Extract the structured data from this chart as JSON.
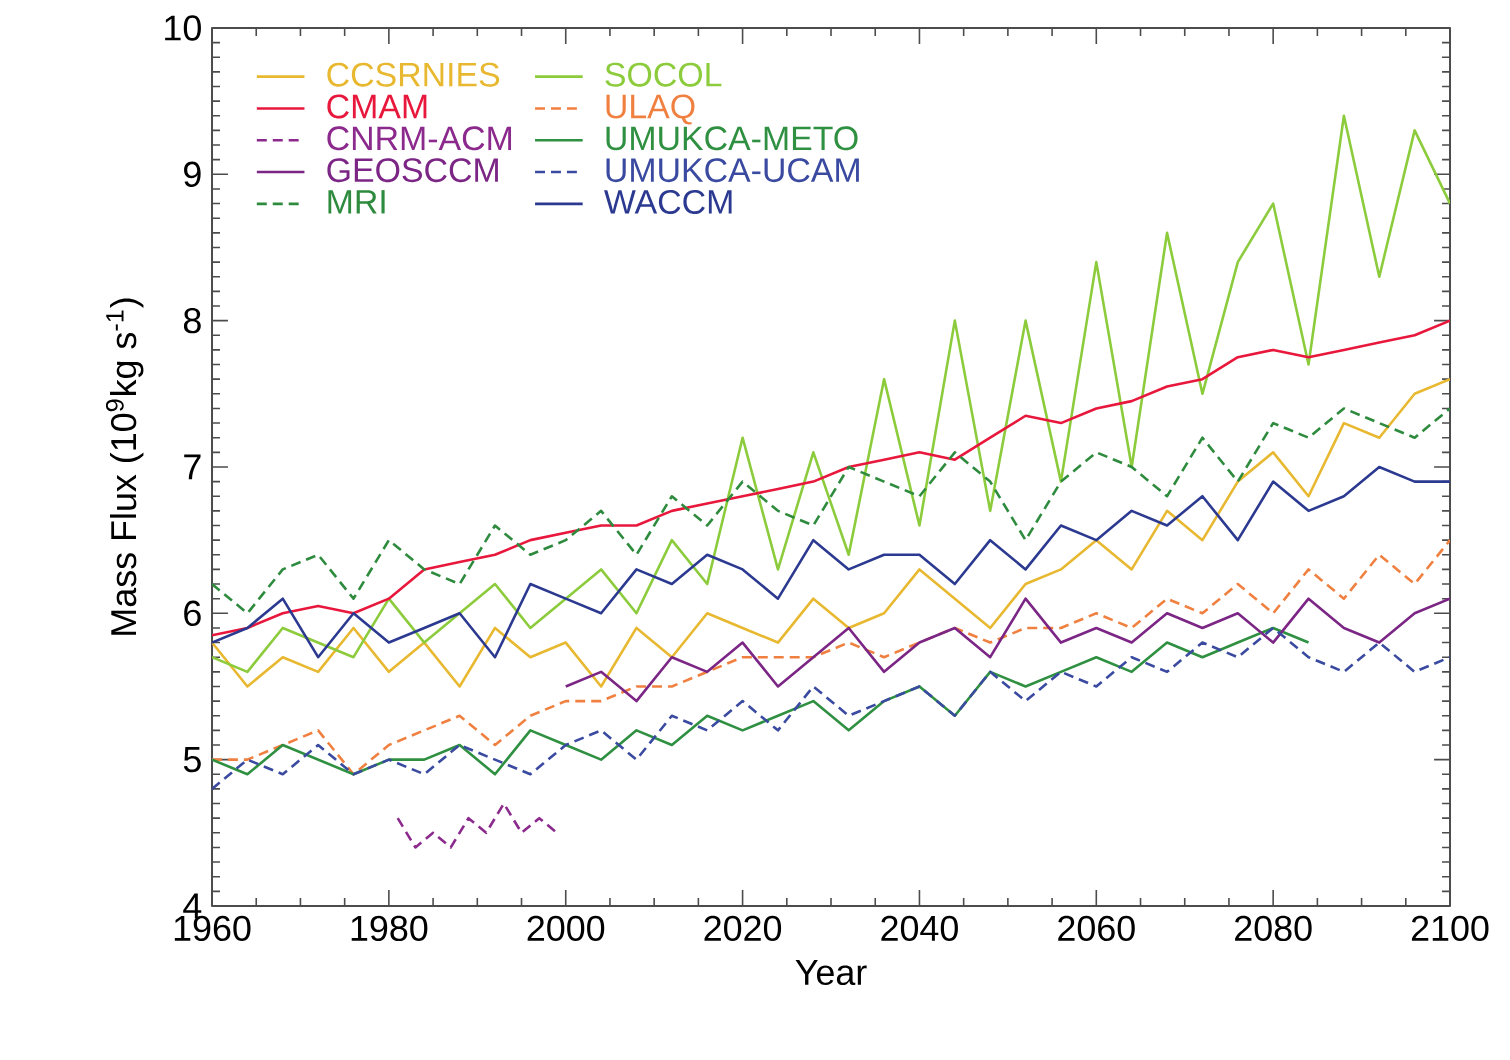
{
  "chart_data": {
    "type": "line",
    "xlabel": "Year",
    "ylabel": "Mass Flux (10$^{9}$kg s$^{-1}$)",
    "xlim": [
      1960,
      2100
    ],
    "xticks": [
      1960,
      1980,
      2000,
      2020,
      2040,
      2060,
      2080,
      2100
    ],
    "ylim": [
      4,
      10
    ],
    "yticks": [
      4,
      5,
      6,
      7,
      8,
      9,
      10
    ],
    "grid": false,
    "legend": "top left",
    "x": [
      1960,
      1964,
      1968,
      1972,
      1976,
      1980,
      1984,
      1988,
      1992,
      1996,
      2000,
      2004,
      2008,
      2012,
      2016,
      2020,
      2024,
      2028,
      2032,
      2036,
      2040,
      2044,
      2048,
      2052,
      2056,
      2060,
      2064,
      2068,
      2072,
      2076,
      2080,
      2084,
      2088,
      2092,
      2096,
      2100
    ],
    "series": [
      {
        "name": "CCSRNIES",
        "color": "#e8b830",
        "line_style": "solid",
        "values": [
          5.8,
          5.5,
          5.7,
          5.6,
          5.9,
          5.6,
          5.8,
          5.5,
          5.9,
          5.7,
          5.8,
          5.5,
          5.9,
          5.7,
          6.0,
          5.9,
          5.8,
          6.1,
          5.9,
          6.0,
          6.3,
          6.1,
          5.9,
          6.2,
          6.3,
          6.5,
          6.3,
          6.7,
          6.5,
          6.9,
          7.1,
          6.8,
          7.3,
          7.2,
          7.5,
          7.6
        ]
      },
      {
        "name": "CMAM",
        "color": "#e8173c",
        "line_style": "solid",
        "values": [
          5.85,
          5.9,
          6.0,
          6.05,
          6.0,
          6.1,
          6.3,
          6.35,
          6.4,
          6.5,
          6.55,
          6.6,
          6.6,
          6.7,
          6.75,
          6.8,
          6.85,
          6.9,
          7.0,
          7.05,
          7.1,
          7.05,
          7.2,
          7.35,
          7.3,
          7.4,
          7.45,
          7.55,
          7.6,
          7.75,
          7.8,
          7.75,
          7.8,
          7.85,
          7.9,
          8.0
        ]
      },
      {
        "name": "CNRM-ACM",
        "color": "#8b2a8c",
        "line_style": "dashed",
        "x": [
          1981,
          1983,
          1985,
          1987,
          1989,
          1991,
          1993,
          1995,
          1997,
          1999
        ],
        "values": [
          4.6,
          4.4,
          4.5,
          4.4,
          4.6,
          4.5,
          4.7,
          4.5,
          4.6,
          4.5
        ]
      },
      {
        "name": "GEOSCCM",
        "color": "#7b2585",
        "line_style": "solid",
        "x": [
          2000,
          2004,
          2008,
          2012,
          2016,
          2020,
          2024,
          2028,
          2032,
          2036,
          2040,
          2044,
          2048,
          2052,
          2056,
          2060,
          2064,
          2068,
          2072,
          2076,
          2080,
          2084,
          2088,
          2092,
          2096,
          2100
        ],
        "values": [
          5.5,
          5.6,
          5.4,
          5.7,
          5.6,
          5.8,
          5.5,
          5.7,
          5.9,
          5.6,
          5.8,
          5.9,
          5.7,
          6.1,
          5.8,
          5.9,
          5.8,
          6.0,
          5.9,
          6.0,
          5.8,
          6.1,
          5.9,
          5.8,
          6.0,
          6.1
        ]
      },
      {
        "name": "MRI",
        "color": "#2e8b3e",
        "line_style": "dashed",
        "values": [
          6.2,
          6.0,
          6.3,
          6.4,
          6.1,
          6.5,
          6.3,
          6.2,
          6.6,
          6.4,
          6.5,
          6.7,
          6.4,
          6.8,
          6.6,
          6.9,
          6.7,
          6.6,
          7.0,
          6.9,
          6.8,
          7.1,
          6.9,
          6.5,
          6.9,
          7.1,
          7.0,
          6.8,
          7.2,
          6.9,
          7.3,
          7.2,
          7.4,
          7.3,
          7.2,
          7.4
        ]
      },
      {
        "name": "SOCOL",
        "color": "#8ccc3c",
        "line_style": "solid",
        "values": [
          5.7,
          5.6,
          5.9,
          5.8,
          5.7,
          6.1,
          5.8,
          6.0,
          6.2,
          5.9,
          6.1,
          6.3,
          6.0,
          6.5,
          6.2,
          7.2,
          6.3,
          7.1,
          6.4,
          7.6,
          6.6,
          8.0,
          6.7,
          8.0,
          6.9,
          8.4,
          7.0,
          8.6,
          7.5,
          8.4,
          8.8,
          7.7,
          9.4,
          8.3,
          9.3,
          8.8
        ]
      },
      {
        "name": "ULAQ",
        "color": "#f08040",
        "line_style": "dashed",
        "values": [
          5.0,
          5.0,
          5.1,
          5.2,
          4.9,
          5.1,
          5.2,
          5.3,
          5.1,
          5.3,
          5.4,
          5.4,
          5.5,
          5.5,
          5.6,
          5.7,
          5.7,
          5.7,
          5.8,
          5.7,
          5.8,
          5.9,
          5.8,
          5.9,
          5.9,
          6.0,
          5.9,
          6.1,
          6.0,
          6.2,
          6.0,
          6.3,
          6.1,
          6.4,
          6.2,
          6.5
        ]
      },
      {
        "name": "UMUKCA-METO",
        "color": "#2e9040",
        "line_style": "solid",
        "values": [
          5.0,
          4.9,
          5.1,
          5.0,
          4.9,
          5.0,
          5.0,
          5.1,
          4.9,
          5.2,
          5.1,
          5.0,
          5.2,
          5.1,
          5.3,
          5.2,
          5.3,
          5.4,
          5.2,
          5.4,
          5.5,
          5.3,
          5.6,
          5.5,
          5.6,
          5.7,
          5.6,
          5.8,
          5.7,
          5.8,
          5.9,
          5.8,
          null,
          null,
          null,
          null
        ]
      },
      {
        "name": "UMUKCA-UCAM",
        "color": "#3a4aa0",
        "line_style": "dashed",
        "values": [
          4.8,
          5.0,
          4.9,
          5.1,
          4.9,
          5.0,
          4.9,
          5.1,
          5.0,
          4.9,
          5.1,
          5.2,
          5.0,
          5.3,
          5.2,
          5.4,
          5.2,
          5.5,
          5.3,
          5.4,
          5.5,
          5.3,
          5.6,
          5.4,
          5.6,
          5.5,
          5.7,
          5.6,
          5.8,
          5.7,
          5.9,
          5.7,
          5.6,
          5.8,
          5.6,
          5.7
        ]
      },
      {
        "name": "WACCM",
        "color": "#2b3990",
        "line_style": "solid",
        "values": [
          5.8,
          5.9,
          6.1,
          5.7,
          6.0,
          5.8,
          5.9,
          6.0,
          5.7,
          6.2,
          6.1,
          6.0,
          6.3,
          6.2,
          6.4,
          6.3,
          6.1,
          6.5,
          6.3,
          6.4,
          6.4,
          6.2,
          6.5,
          6.3,
          6.6,
          6.5,
          6.7,
          6.6,
          6.8,
          6.5,
          6.9,
          6.7,
          6.8,
          7.0,
          6.9,
          6.9
        ]
      }
    ]
  }
}
